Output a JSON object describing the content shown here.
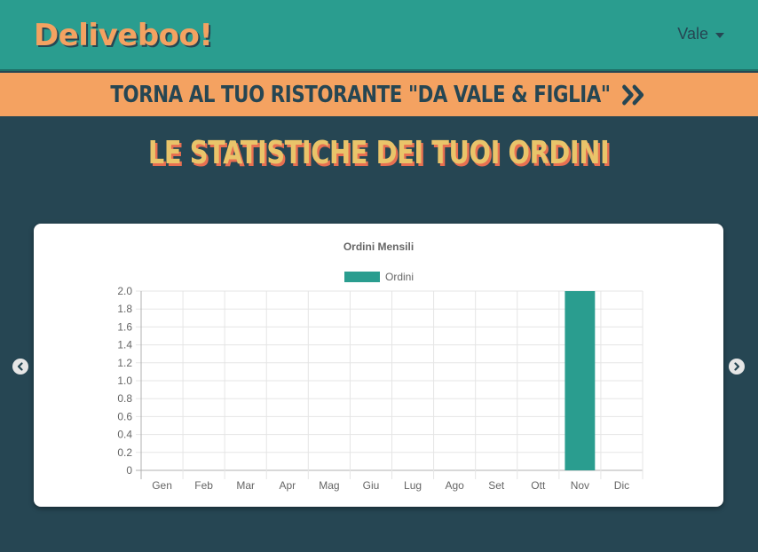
{
  "navbar": {
    "logo": "Deliveboo!",
    "user_name": "Vale"
  },
  "banner": {
    "text": "Torna al tuo ristorante \"Da Vale & Figlia\""
  },
  "page_title": "Le statistiche dei tuoi ordini",
  "colors": {
    "teal": "#2a9d8f",
    "orange": "#f4a261",
    "dark": "#264653",
    "yellow": "#e9c46a",
    "red": "#e76f51"
  },
  "icons": {
    "chevrons": "chevrons-right-icon",
    "prev": "chevron-left-icon",
    "next": "chevron-right-icon",
    "caret": "caret-down-icon"
  },
  "chart_data": {
    "type": "bar",
    "title": "Ordini Mensili",
    "categories": [
      "Gen",
      "Feb",
      "Mar",
      "Apr",
      "Mag",
      "Giu",
      "Lug",
      "Ago",
      "Set",
      "Ott",
      "Nov",
      "Dic"
    ],
    "series": [
      {
        "name": "Ordini",
        "color": "#2a9d8f",
        "values": [
          0,
          0,
          0,
          0,
          0,
          0,
          0,
          0,
          0,
          0,
          2,
          0
        ]
      }
    ],
    "xlabel": "",
    "ylabel": "",
    "ylim": [
      0,
      2
    ],
    "yticks": [
      "0",
      "0.2",
      "0.4",
      "0.6",
      "0.8",
      "1.0",
      "1.2",
      "1.4",
      "1.6",
      "1.8",
      "2.0"
    ],
    "ytick_values": [
      0,
      0.2,
      0.4,
      0.6,
      0.8,
      1.0,
      1.2,
      1.4,
      1.6,
      1.8,
      2.0
    ],
    "grid": true,
    "legend": "top"
  }
}
